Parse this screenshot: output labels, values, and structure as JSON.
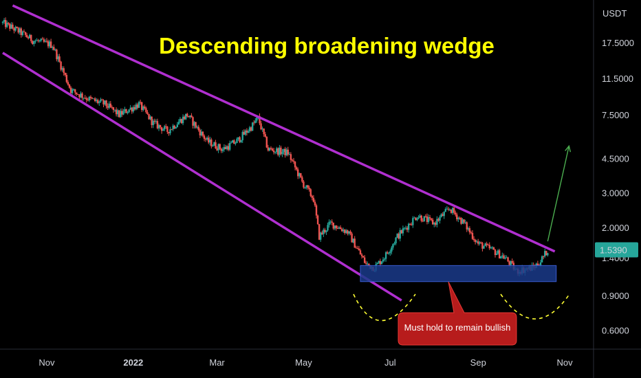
{
  "chart_data": {
    "type": "candlestick",
    "title": "Descending broadening wedge",
    "currency": "USDT",
    "y_scale": "log",
    "ylim": [
      0.5,
      27
    ],
    "xlim": [
      "2021-10-01",
      "2022-11-15"
    ],
    "y_ticks": [
      "17.5000",
      "11.5000",
      "7.5000",
      "4.5000",
      "3.0000",
      "2.0000",
      "1.4000",
      "0.9000",
      "0.6000"
    ],
    "x_ticks": [
      {
        "label": "Nov",
        "date": "2021-11-01",
        "bold": false
      },
      {
        "label": "2022",
        "date": "2022-01-01",
        "bold": true
      },
      {
        "label": "Mar",
        "date": "2022-03-01",
        "bold": false
      },
      {
        "label": "May",
        "date": "2022-05-01",
        "bold": false
      },
      {
        "label": "Jul",
        "date": "2022-07-01",
        "bold": false
      },
      {
        "label": "Sep",
        "date": "2022-09-01",
        "bold": false
      },
      {
        "label": "Nov",
        "date": "2022-11-01",
        "bold": false
      }
    ],
    "last_price": "1.5390",
    "colors": {
      "up": "#26a69a",
      "down": "#ef5350",
      "wedge_lines": "#b02fd0",
      "support_zone": "#1a3a8a",
      "arrow": "#4caf50",
      "arc": "#ffff33",
      "callout": "#b71c1c",
      "price_tag": "#26a69a",
      "title": "#ffff00"
    },
    "anchor_points": [
      [
        "2021-10-01",
        22
      ],
      [
        "2021-10-12",
        20
      ],
      [
        "2021-10-22",
        18
      ],
      [
        "2021-11-05",
        17
      ],
      [
        "2021-11-18",
        10
      ],
      [
        "2021-12-01",
        9
      ],
      [
        "2021-12-12",
        8.5
      ],
      [
        "2021-12-22",
        7.5
      ],
      [
        "2022-01-05",
        8.5
      ],
      [
        "2022-01-15",
        6.8
      ],
      [
        "2022-01-25",
        6.2
      ],
      [
        "2022-02-08",
        7.5
      ],
      [
        "2022-02-22",
        5.5
      ],
      [
        "2022-03-05",
        5.0
      ],
      [
        "2022-03-15",
        5.5
      ],
      [
        "2022-03-25",
        6.5
      ],
      [
        "2022-03-30",
        7.2
      ],
      [
        "2022-04-06",
        5.0
      ],
      [
        "2022-04-20",
        4.8
      ],
      [
        "2022-04-30",
        3.4
      ],
      [
        "2022-05-08",
        2.8
      ],
      [
        "2022-05-12",
        1.8
      ],
      [
        "2022-05-20",
        2.1
      ],
      [
        "2022-06-01",
        1.9
      ],
      [
        "2022-06-14",
        1.3
      ],
      [
        "2022-06-20",
        1.25
      ],
      [
        "2022-06-28",
        1.45
      ],
      [
        "2022-07-06",
        1.8
      ],
      [
        "2022-07-20",
        2.3
      ],
      [
        "2022-08-01",
        2.1
      ],
      [
        "2022-08-12",
        2.5
      ],
      [
        "2022-08-22",
        2.1
      ],
      [
        "2022-09-01",
        1.65
      ],
      [
        "2022-09-10",
        1.55
      ],
      [
        "2022-09-20",
        1.4
      ],
      [
        "2022-09-28",
        1.2
      ],
      [
        "2022-10-10",
        1.25
      ],
      [
        "2022-10-15",
        1.35
      ],
      [
        "2022-10-20",
        1.539
      ]
    ],
    "annotations": {
      "upper_line": {
        "from": [
          "2021-10-08",
          27
        ],
        "to": [
          "2022-10-25",
          1.51
        ]
      },
      "lower_line": {
        "from": [
          "2021-10-01",
          15.5
        ],
        "to": [
          "2022-07-09",
          0.85
        ]
      },
      "support_zone": {
        "from_date": "2022-06-10",
        "to_date": "2022-10-26",
        "low": 1.06,
        "high": 1.28
      },
      "callout_text": "Must hold to remain bullish",
      "arrow": {
        "from": [
          "2022-10-20",
          1.7
        ],
        "to": [
          "2022-11-04",
          5.2
        ]
      }
    }
  }
}
